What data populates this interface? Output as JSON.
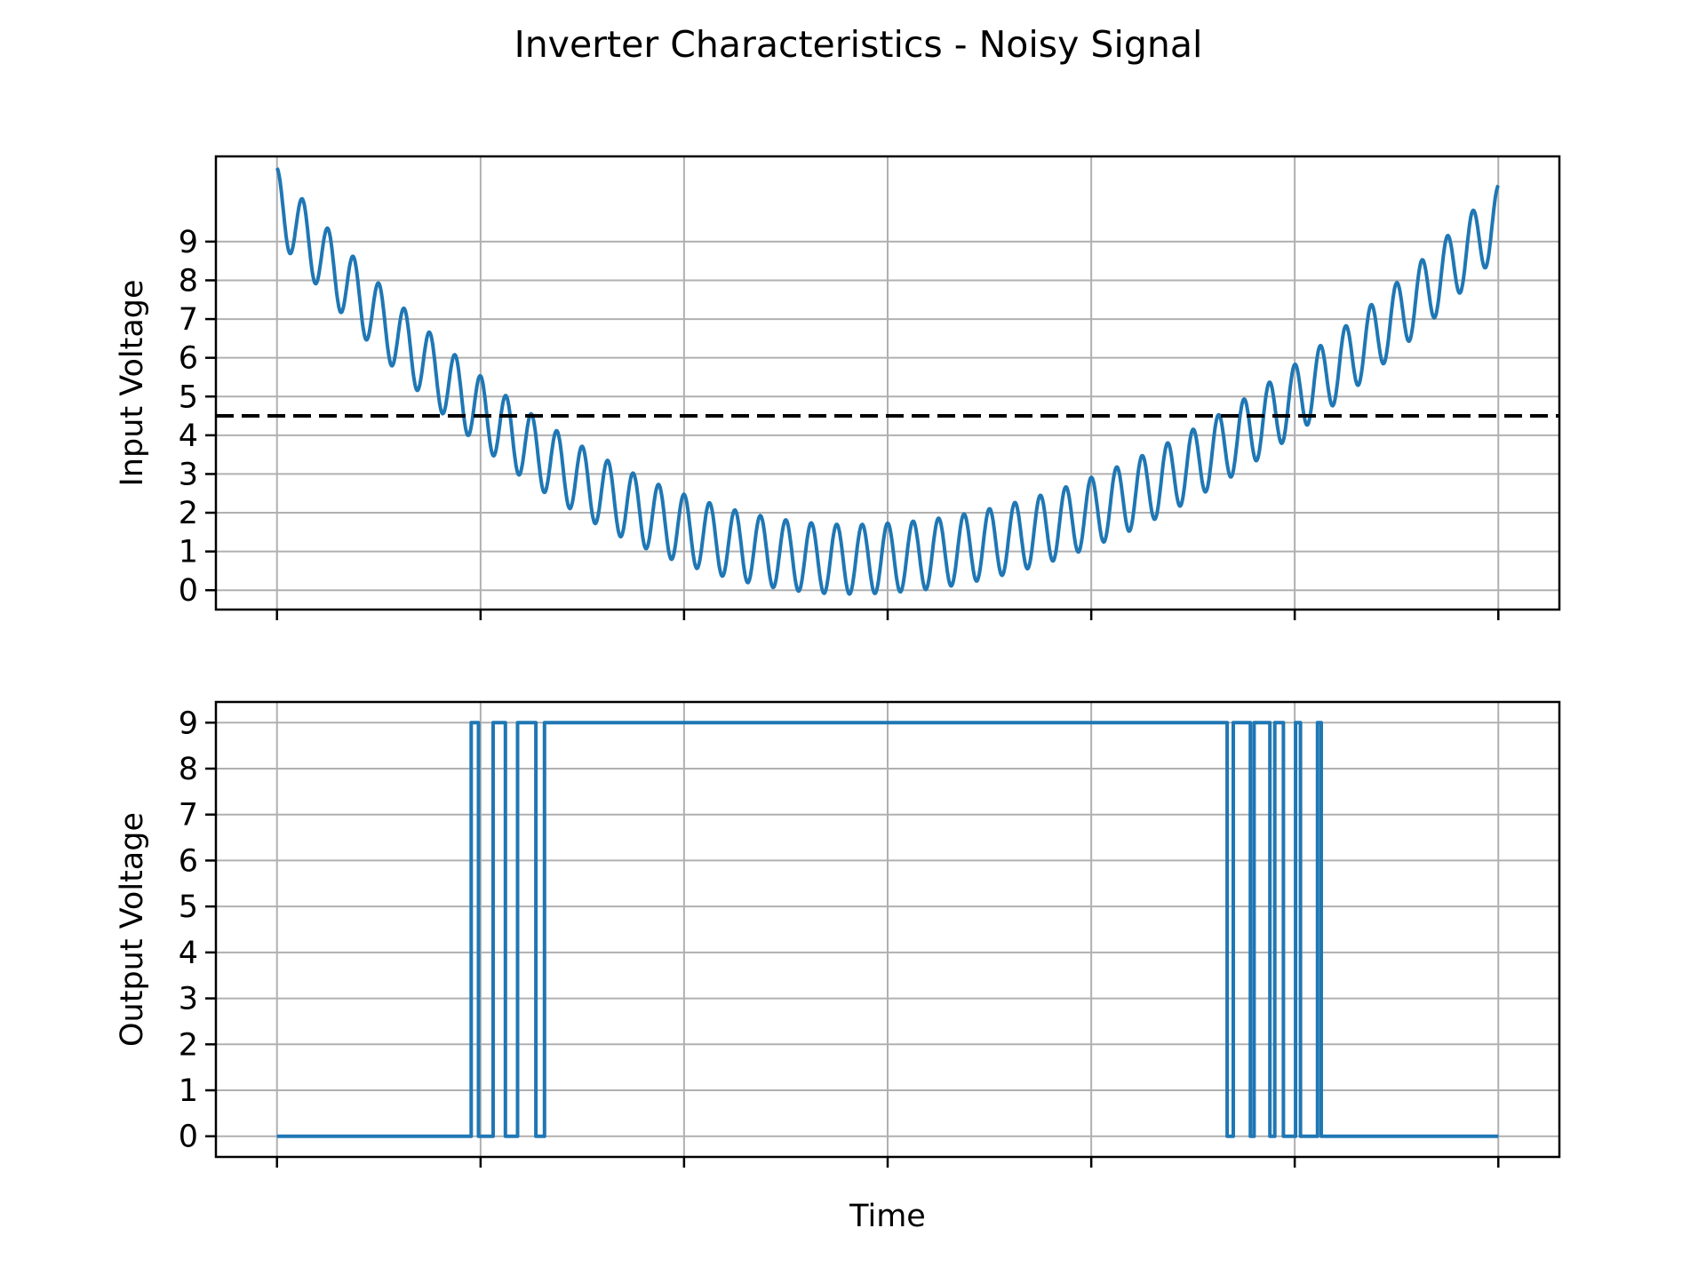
{
  "title": "Inverter Characteristics - Noisy Signal",
  "colors": {
    "series": "#1f77b4",
    "threshold": "#000000",
    "grid": "#b0b0b0",
    "axes": "#000000",
    "background": "#ffffff"
  },
  "chart_data": [
    {
      "type": "line",
      "panel": "top",
      "xlabel": "",
      "ylabel": "Input Voltage",
      "grid": true,
      "xlim": [
        -0.05,
        1.05
      ],
      "ylim": [
        -0.5,
        11.2
      ],
      "x_ticks": [
        0,
        0.1667,
        0.3333,
        0.5,
        0.6667,
        0.8333,
        1.0
      ],
      "x_tick_labels_visible": false,
      "y_ticks": [
        0,
        1,
        2,
        3,
        4,
        5,
        6,
        7,
        8,
        9
      ],
      "y_tick_labels": [
        "0",
        "1",
        "2",
        "3",
        "4",
        "5",
        "6",
        "7",
        "8",
        "9"
      ],
      "series": [
        {
          "style": "solid",
          "x": [
            0,
            0.02,
            0.04,
            0.06,
            0.08,
            0.1,
            0.12,
            0.14,
            0.16,
            0.18,
            0.2,
            0.22,
            0.24,
            0.26,
            0.28,
            0.3,
            0.32,
            0.34,
            0.36,
            0.38,
            0.4,
            0.42,
            0.44,
            0.46,
            0.48,
            0.5,
            0.52,
            0.54,
            0.56,
            0.58,
            0.6,
            0.62,
            0.64,
            0.66,
            0.68,
            0.7,
            0.72,
            0.74,
            0.76,
            0.78,
            0.8,
            0.82,
            0.84,
            0.86,
            0.88,
            0.9,
            0.92,
            0.94,
            0.96,
            0.98,
            1.0
          ],
          "center": [
            10.0,
            9.23,
            8.5,
            7.8,
            7.13,
            6.5,
            5.9,
            5.33,
            4.8,
            4.3,
            3.83,
            3.4,
            3.0,
            2.63,
            2.3,
            2.0,
            1.73,
            1.5,
            1.3,
            1.13,
            1.0,
            0.9,
            0.83,
            0.8,
            0.8,
            0.83,
            0.88,
            0.95,
            1.05,
            1.18,
            1.33,
            1.5,
            1.7,
            1.93,
            2.18,
            2.45,
            2.75,
            3.08,
            3.43,
            3.8,
            4.2,
            4.63,
            5.08,
            5.55,
            6.05,
            6.58,
            7.13,
            7.7,
            8.3,
            8.93,
            9.55
          ],
          "ripple_amplitude": 0.9,
          "ripple_cycles": 48
        },
        {
          "style": "dashed",
          "role": "threshold",
          "y": 4.5
        }
      ]
    },
    {
      "type": "line",
      "panel": "bottom",
      "xlabel": "Time",
      "ylabel": "Output Voltage",
      "grid": true,
      "step": true,
      "xlim": [
        -0.05,
        1.05
      ],
      "ylim": [
        -0.45,
        9.45
      ],
      "x_ticks": [
        0,
        0.1667,
        0.3333,
        0.5,
        0.6667,
        0.8333,
        1.0
      ],
      "x_tick_labels_visible": false,
      "y_ticks": [
        0,
        1,
        2,
        3,
        4,
        5,
        6,
        7,
        8,
        9
      ],
      "y_tick_labels": [
        "0",
        "1",
        "2",
        "3",
        "4",
        "5",
        "6",
        "7",
        "8",
        "9"
      ],
      "series": [
        {
          "style": "solid",
          "low": 0,
          "high": 9,
          "x_start": 0,
          "x_end": 1.0,
          "transitions": [
            0.159,
            0.165,
            0.177,
            0.187,
            0.197,
            0.212,
            0.219,
            0.778,
            0.783,
            0.797,
            0.8,
            0.813,
            0.817,
            0.824,
            0.834,
            0.838,
            0.852,
            0.855
          ]
        }
      ]
    }
  ]
}
